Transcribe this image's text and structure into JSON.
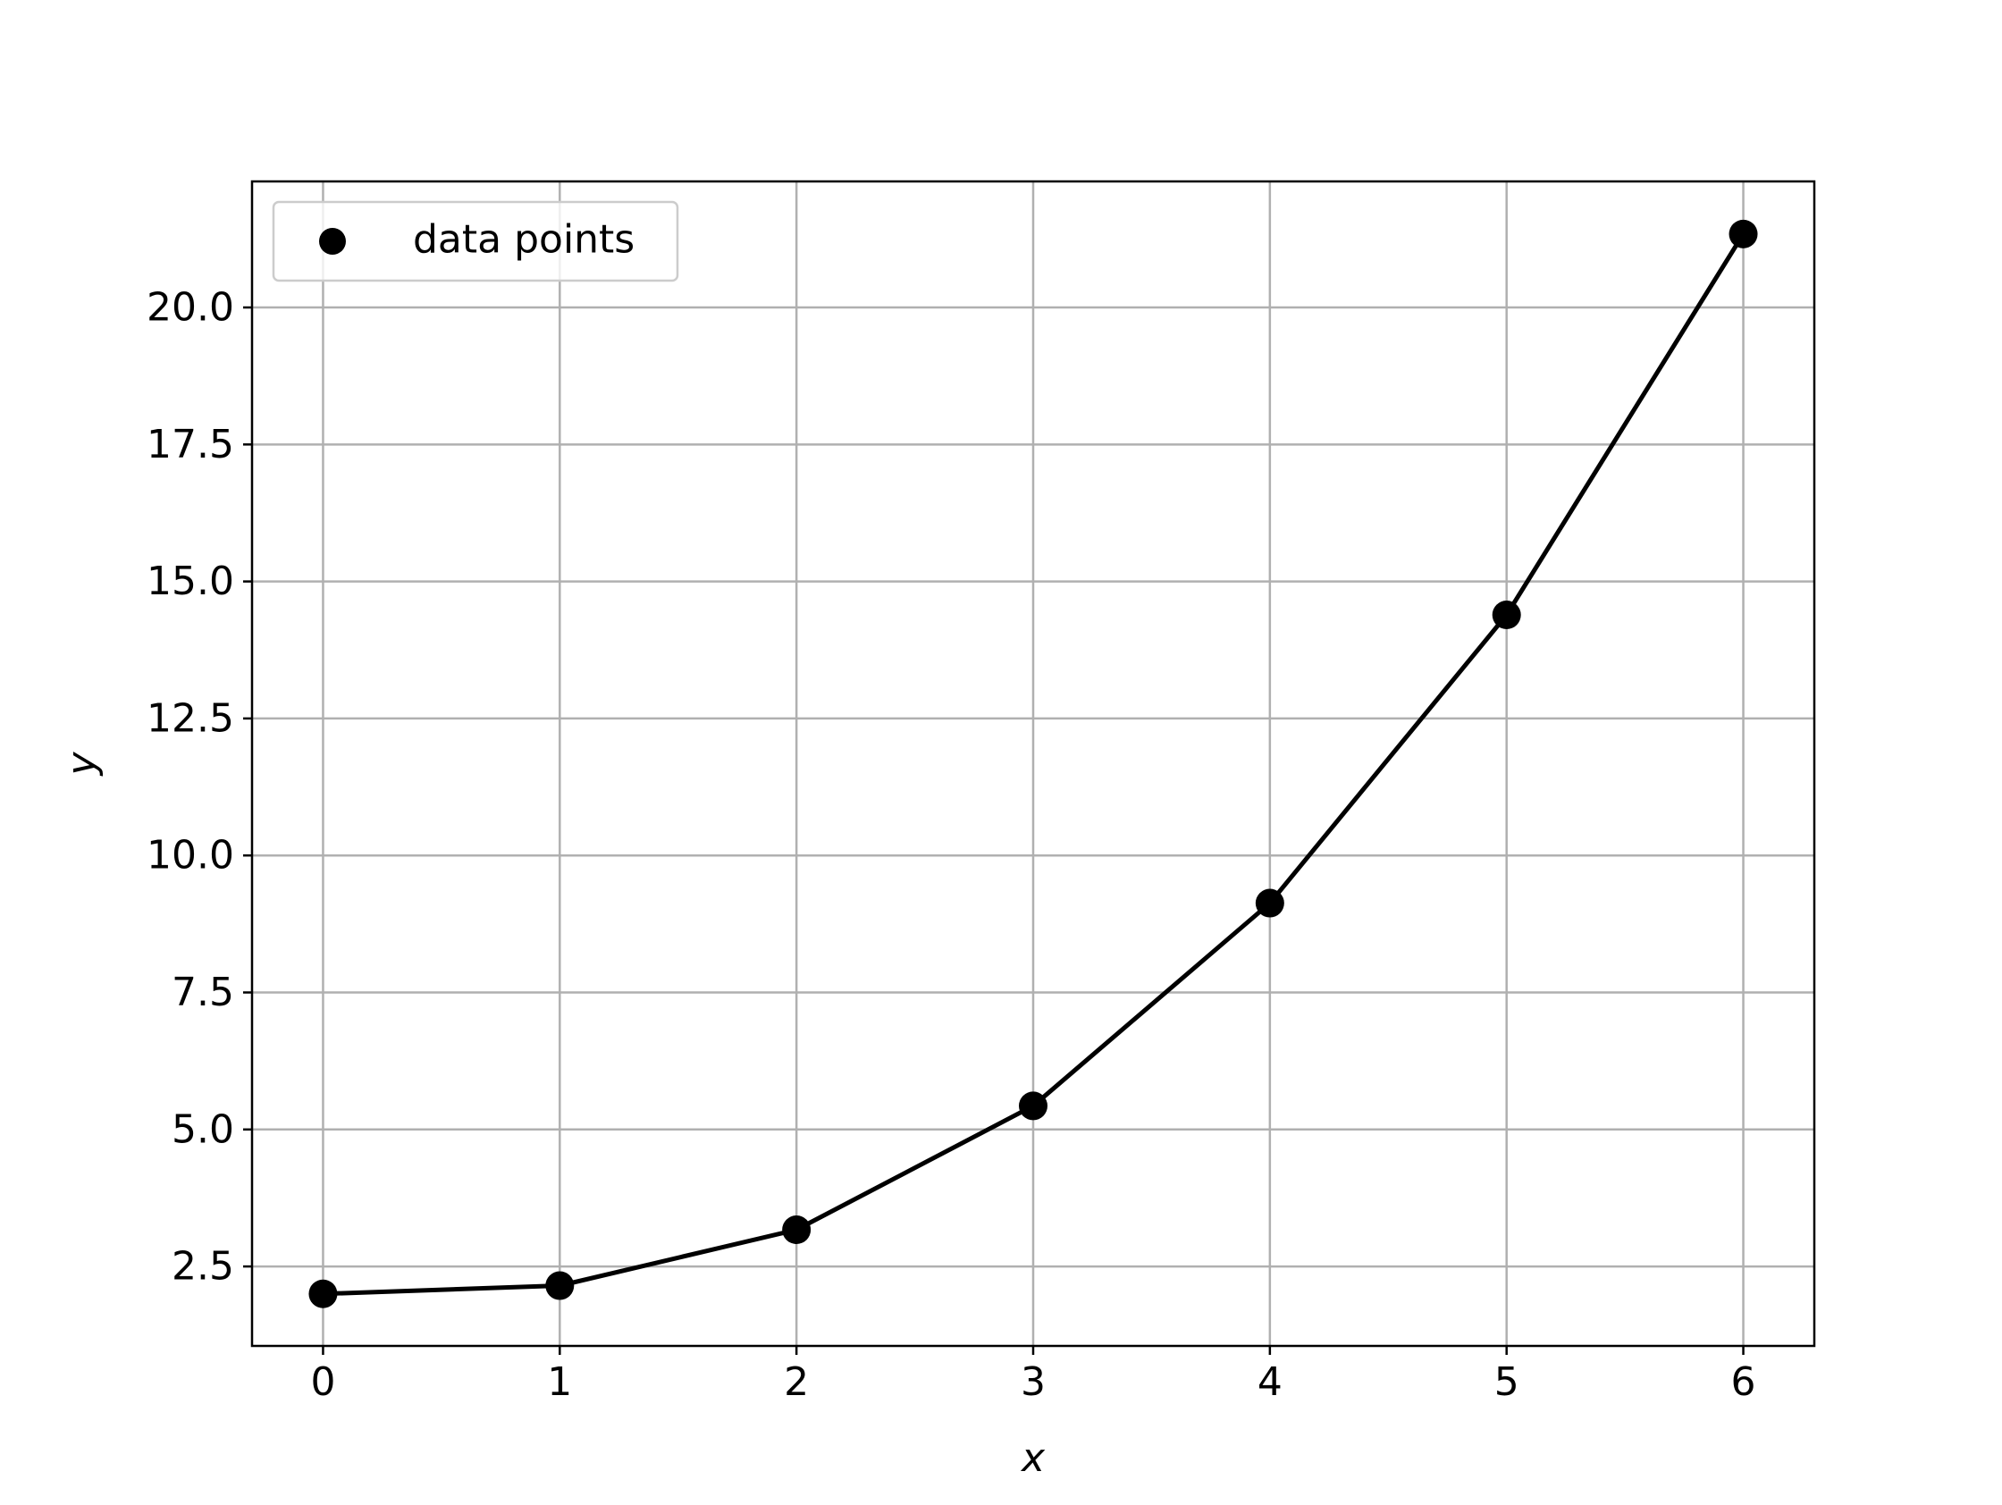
{
  "chart_data": {
    "type": "line",
    "title": "",
    "xlabel": "x",
    "ylabel": "y",
    "xlim": [
      -0.3,
      6.3
    ],
    "ylim": [
      1.05,
      22.3
    ],
    "xticks": [
      0,
      1,
      2,
      3,
      4,
      5,
      6
    ],
    "xtick_labels": [
      "0",
      "1",
      "2",
      "3",
      "4",
      "5",
      "6"
    ],
    "yticks": [
      2.5,
      5.0,
      7.5,
      10.0,
      12.5,
      15.0,
      17.5,
      20.0
    ],
    "ytick_labels": [
      "2.5",
      "5.0",
      "7.5",
      "10.0",
      "12.5",
      "15.0",
      "17.5",
      "20.0"
    ],
    "grid": true,
    "legend": {
      "position": "top-left",
      "entries": [
        "data points"
      ]
    },
    "series": [
      {
        "name": "data points",
        "color": "#000000",
        "marker": "circle",
        "x": [
          0,
          1,
          2,
          3,
          4,
          5,
          6
        ],
        "y": [
          2.0,
          2.15,
          3.17,
          5.43,
          9.13,
          14.39,
          21.34
        ]
      }
    ]
  }
}
